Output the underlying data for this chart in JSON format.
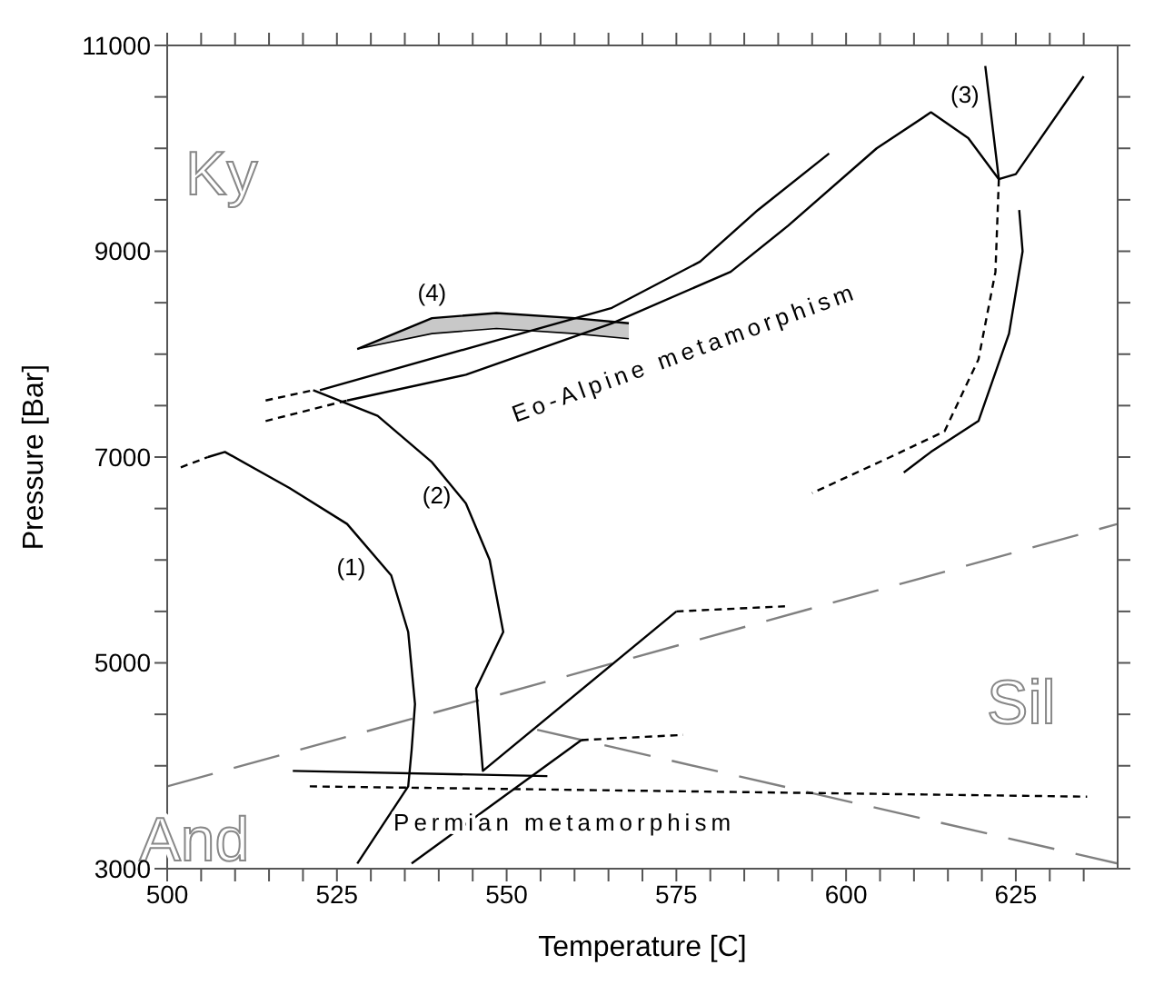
{
  "chart_data": {
    "type": "line",
    "xlabel": "Temperature [C]",
    "ylabel": "Pressure [Bar]",
    "xlim": [
      500,
      640
    ],
    "ylim": [
      3000,
      11000
    ],
    "xticks": [
      500,
      {
        "value": 505,
        "label": null
      },
      {
        "value": 510,
        "label": null
      },
      {
        "value": 515,
        "label": null
      },
      {
        "value": 520,
        "label": null
      },
      525,
      {
        "value": 530,
        "label": null
      },
      {
        "value": 535,
        "label": null
      },
      {
        "value": 540,
        "label": null
      },
      {
        "value": 545,
        "label": null
      },
      550,
      {
        "value": 555,
        "label": null
      },
      {
        "value": 560,
        "label": null
      },
      {
        "value": 565,
        "label": null
      },
      {
        "value": 570,
        "label": null
      },
      575,
      {
        "value": 580,
        "label": null
      },
      {
        "value": 585,
        "label": null
      },
      {
        "value": 590,
        "label": null
      },
      {
        "value": 595,
        "label": null
      },
      600,
      {
        "value": 605,
        "label": null
      },
      {
        "value": 610,
        "label": null
      },
      {
        "value": 615,
        "label": null
      },
      {
        "value": 620,
        "label": null
      },
      625,
      {
        "value": 630,
        "label": null
      },
      {
        "value": 635,
        "label": null
      }
    ],
    "yticks": [
      3000,
      {
        "value": 3500,
        "label": null
      },
      {
        "value": 4000,
        "label": null
      },
      {
        "value": 4500,
        "label": null
      },
      5000,
      {
        "value": 5500,
        "label": null
      },
      {
        "value": 6000,
        "label": null
      },
      {
        "value": 6500,
        "label": null
      },
      7000,
      {
        "value": 7500,
        "label": null
      },
      {
        "value": 8000,
        "label": null
      },
      {
        "value": 8500,
        "label": null
      },
      9000,
      {
        "value": 9500,
        "label": null
      },
      {
        "value": 10000,
        "label": null
      },
      {
        "value": 10500,
        "label": null
      },
      11000
    ],
    "annotations": [
      "Ky",
      {
        "text": "(4)",
        "x": 539,
        "y": 8350
      },
      "(3)",
      {
        "text": "Eo-Alpine metamorphism",
        "x": 583,
        "y": 8800
      },
      "(2)",
      "(1)",
      "Sil",
      "Permian metamorphism",
      "And"
    ],
    "series": [
      {
        "color": "#808080",
        "line_style": "dashed",
        "x": [
          500,
          640
        ],
        "values": [
          3800,
          6350
        ]
      },
      {
        "color": "#808080",
        "line_style": "dashed",
        "x": [
          554.5,
          640
        ],
        "values": [
          4350,
          3050
        ]
      },
      {
        "color": "#000000",
        "x": [
          528,
          539,
          548.5,
          560,
          568
        ],
        "values": [
          8050,
          8350,
          8400,
          8350,
          8300
        ],
        "lower": [
          8050,
          8200,
          8250,
          8200,
          8150
        ],
        "upper": [
          8050,
          8350,
          8400,
          8350,
          8300
        ]
      },
      {
        "color": "#000000",
        "line_style": "dotted",
        "x": [
          502,
          506
        ],
        "values": [
          6900,
          7000
        ]
      },
      {
        "color": "#000000",
        "line_style": "solid",
        "x": [
          506,
          508.5,
          518,
          526.5,
          533,
          535.5,
          536.5,
          536,
          535.5,
          528
        ],
        "values": [
          7000,
          7050,
          6700,
          6350,
          5850,
          5300,
          4600,
          4150,
          3800,
          3050
        ]
      },
      {
        "color": "#000000",
        "line_style": "dotted",
        "x": [
          514.5,
          521.5
        ],
        "values": [
          7550,
          7650
        ]
      },
      {
        "color": "#000000",
        "line_style": "solid",
        "x": [
          521.5,
          531,
          539,
          544,
          547.5,
          549.5,
          545.5,
          546.5,
          575
        ],
        "values": [
          7650,
          7400,
          6950,
          6550,
          6000,
          5300,
          4750,
          3950,
          5500
        ]
      },
      {
        "color": "#000000",
        "line_style": "dotted",
        "x": [
          575,
          591
        ],
        "values": [
          5500,
          5550
        ]
      },
      {
        "color": "#000000",
        "line_style": "solid",
        "x": [
          536,
          561
        ],
        "values": [
          3050,
          4250
        ]
      },
      {
        "color": "#000000",
        "line_style": "dotted",
        "x": [
          561,
          576
        ],
        "values": [
          4250,
          4300
        ]
      },
      {
        "color": "#000000",
        "line_style": "solid",
        "x": [
          518.5,
          556
        ],
        "values": [
          3950,
          3900
        ]
      },
      {
        "color": "#000000",
        "line_style": "dotted",
        "x": [
          521,
          635.5
        ],
        "values": [
          3800,
          3700
        ]
      },
      {
        "color": "#000000",
        "line_style": "solid",
        "x": [
          522.5,
          544,
          565.5,
          578.5,
          587,
          597.5
        ],
        "values": [
          7650,
          8050,
          8450,
          8900,
          9400,
          9950
        ]
      },
      {
        "color": "#000000",
        "line_style": "dotted",
        "x": [
          514.5,
          526.5
        ],
        "values": [
          7350,
          7550
        ]
      },
      {
        "color": "#000000",
        "line_style": "solid",
        "x": [
          526.5,
          544,
          565.5,
          583,
          591.5,
          604.5,
          612.5,
          618,
          622.5
        ],
        "values": [
          7550,
          7800,
          8300,
          8800,
          9250,
          10000,
          10350,
          10100,
          9700
        ]
      },
      {
        "color": "#000000",
        "line_style": "dotted",
        "x": [
          622.5,
          622,
          619.5,
          614.5,
          606.5,
          595
        ],
        "values": [
          9700,
          8800,
          7950,
          7250,
          7000,
          6650
        ]
      },
      {
        "color": "#000000",
        "line_style": "solid",
        "x": [
          625.5,
          626,
          624,
          619.5,
          612.5,
          608.5
        ],
        "values": [
          9400,
          9000,
          8200,
          7350,
          7050,
          6850
        ]
      },
      {
        "color": "#000000",
        "line_style": "solid",
        "x": [
          620.5,
          622.5,
          625,
          635
        ],
        "values": [
          10800,
          9700,
          9750,
          10700
        ]
      }
    ]
  }
}
